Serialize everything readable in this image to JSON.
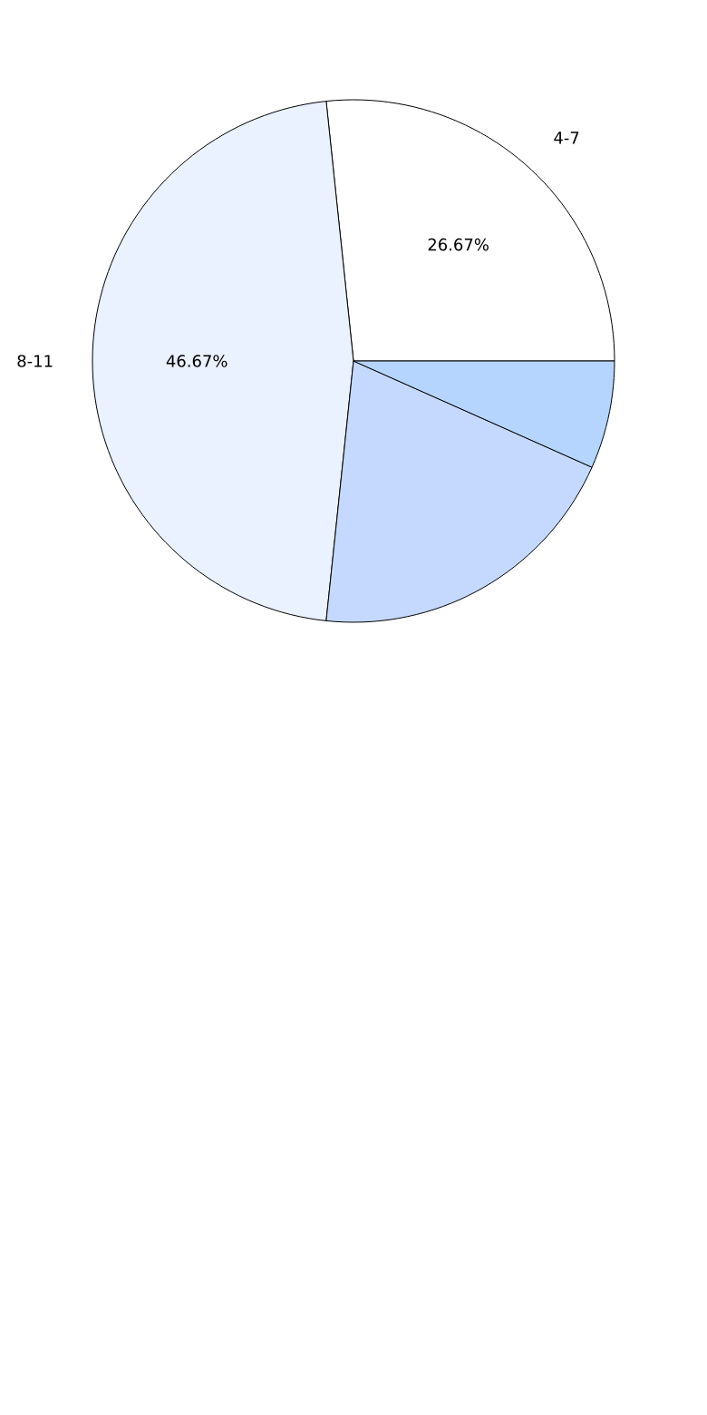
{
  "chart_data": {
    "type": "pie",
    "categories": [
      "4-7",
      "8-11",
      null,
      null
    ],
    "values": [
      26.67,
      46.67,
      20,
      6.67
    ],
    "colors": [
      "#ffffff",
      "#eaf1ff",
      "#c5d9ff",
      "#b5d5ff"
    ],
    "value_labels": [
      "26.67%",
      "46.67%",
      null,
      null
    ]
  }
}
